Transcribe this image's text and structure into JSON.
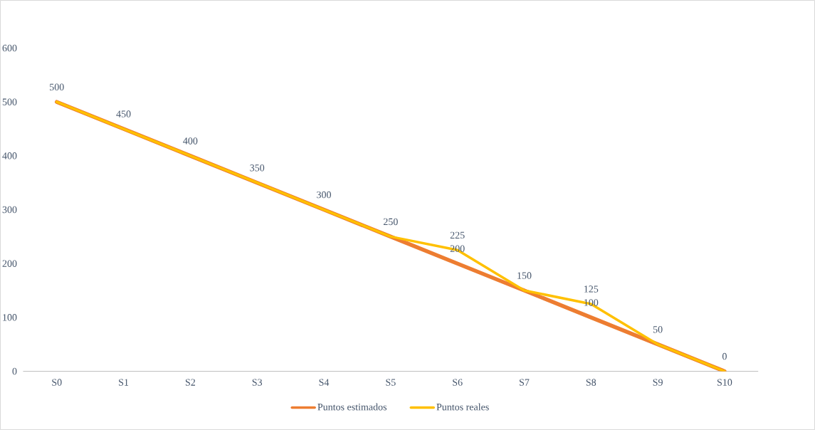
{
  "chart_data": {
    "type": "line",
    "categories": [
      "S0",
      "S1",
      "S2",
      "S3",
      "S4",
      "S5",
      "S6",
      "S7",
      "S8",
      "S9",
      "S10"
    ],
    "series": [
      {
        "name": "Puntos estimados",
        "color": "#ed7d31",
        "values": [
          500,
          450,
          400,
          350,
          300,
          250,
          200,
          150,
          100,
          50,
          0
        ],
        "value_labels": [
          "500",
          "450",
          "400",
          "350",
          "300",
          "250",
          "200",
          "150",
          "100",
          "50",
          "0"
        ]
      },
      {
        "name": "Puntos reales",
        "color": "#ffc000",
        "values": [
          500,
          450,
          400,
          350,
          300,
          250,
          225,
          150,
          125,
          50,
          0
        ],
        "value_labels": [
          null,
          null,
          null,
          null,
          null,
          null,
          "225",
          null,
          "125",
          null,
          null
        ]
      }
    ],
    "ylim": [
      0,
      600
    ],
    "yticks": [
      0,
      100,
      200,
      300,
      400,
      500,
      600
    ],
    "legend": "bottom",
    "line_style": "solid"
  }
}
